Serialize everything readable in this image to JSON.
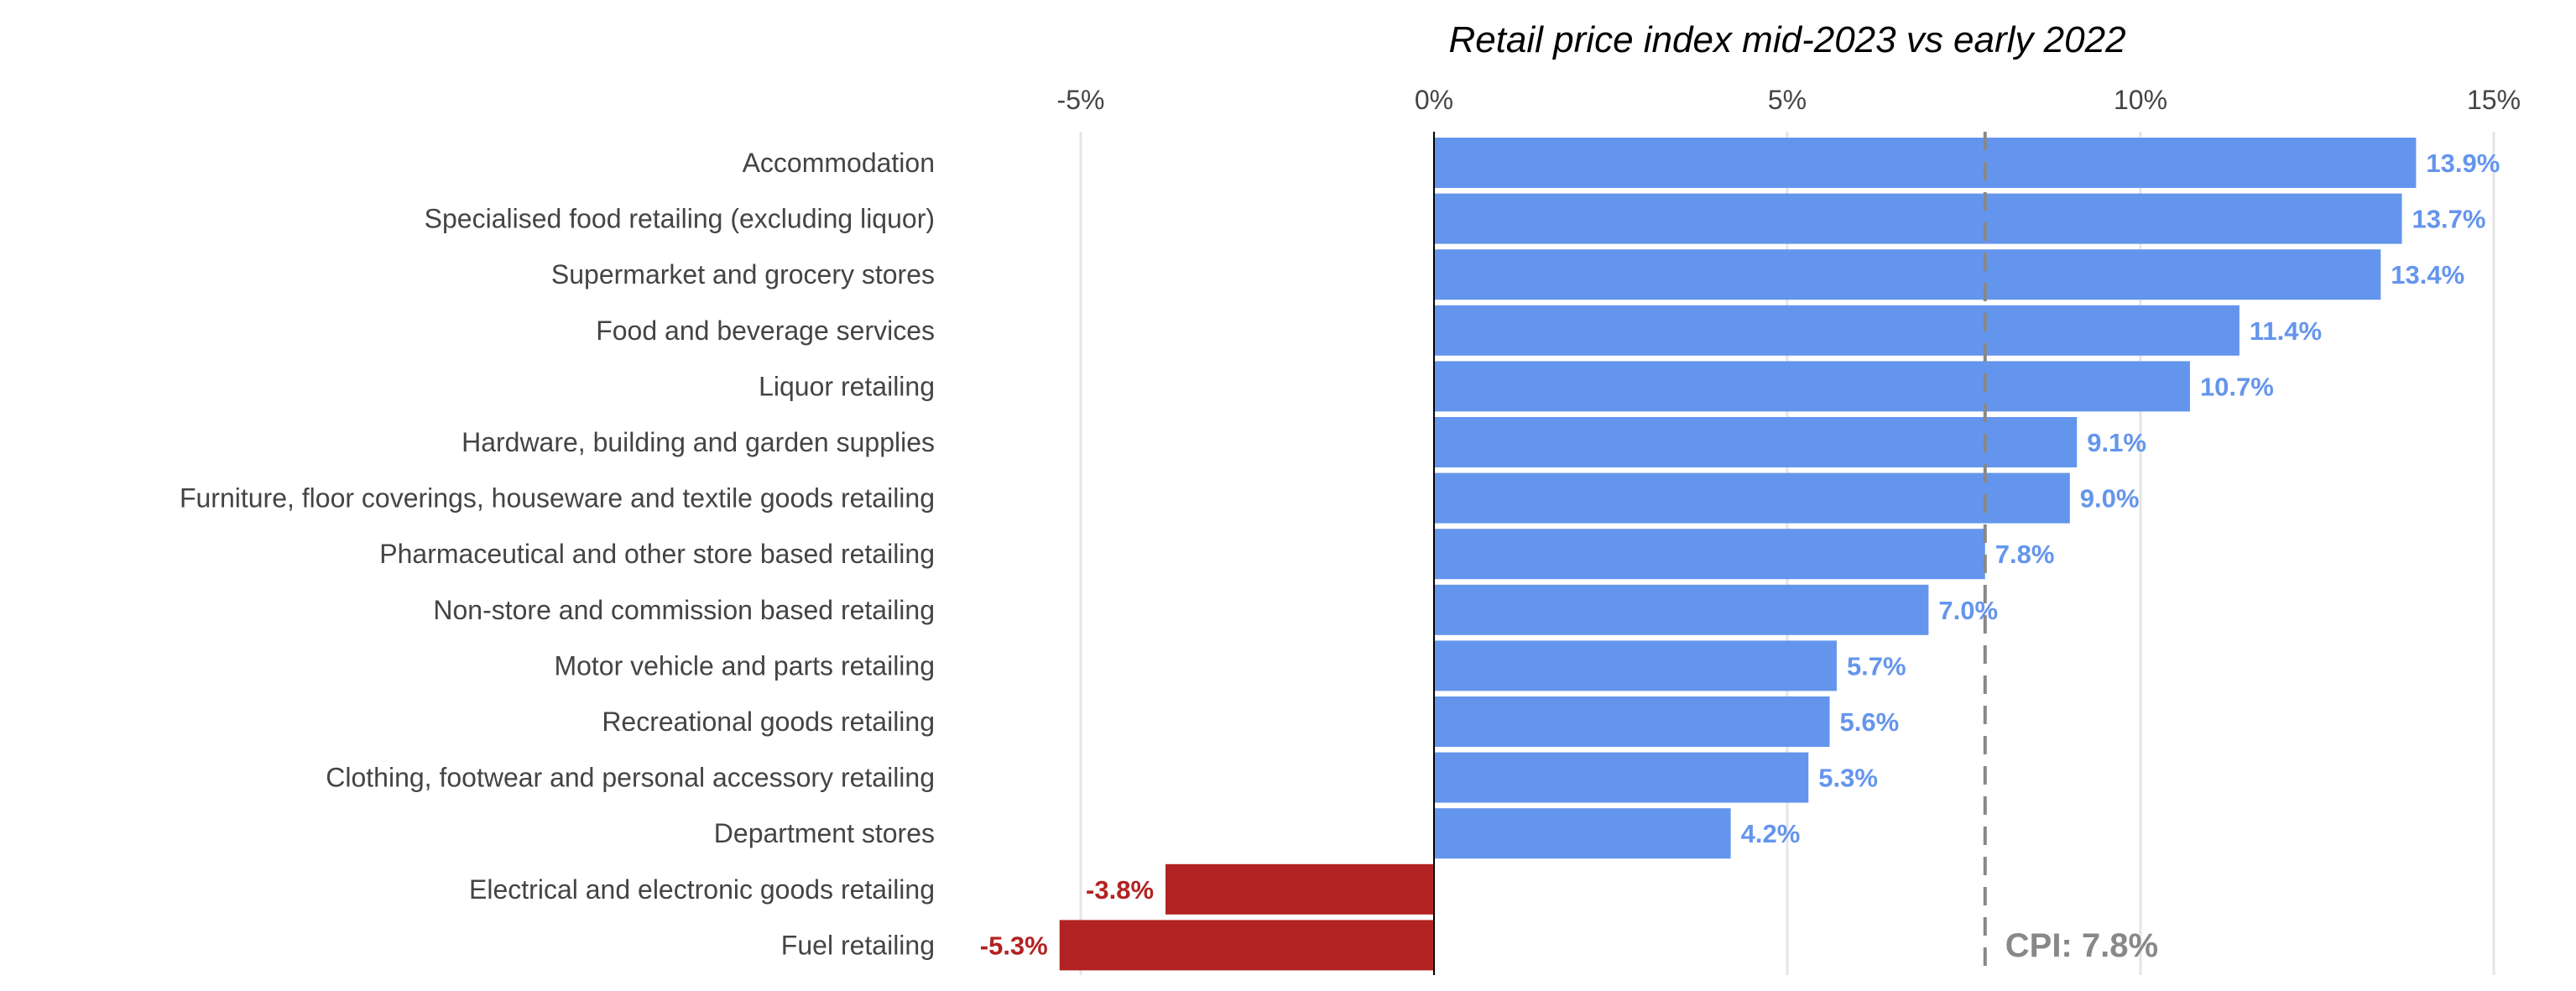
{
  "chart_data": {
    "type": "bar",
    "orientation": "horizontal",
    "title": "Retail price index mid-2023 vs early 2022",
    "xlabel": "",
    "ylabel": "",
    "xlim": [
      -5,
      15
    ],
    "x_ticks": [
      -5,
      0,
      5,
      10,
      15
    ],
    "x_tick_labels": [
      "-5%",
      "0%",
      "5%",
      "10%",
      "15%"
    ],
    "grid": "vertical",
    "categories": [
      "Accommodation",
      "Specialised food retailing (excluding liquor)",
      "Supermarket and grocery stores",
      "Food and beverage services",
      "Liquor retailing",
      "Hardware, building and garden supplies",
      "Furniture, floor coverings, houseware and textile goods retailing",
      "Pharmaceutical and other store based retailing",
      "Non-store and commission based retailing",
      "Motor vehicle and parts retailing",
      "Recreational goods retailing",
      "Clothing, footwear and personal accessory retailing",
      "Department stores",
      "Electrical and electronic goods retailing",
      "Fuel retailing"
    ],
    "values": [
      13.9,
      13.7,
      13.4,
      11.4,
      10.7,
      9.1,
      9.0,
      7.8,
      7.0,
      5.7,
      5.6,
      5.3,
      4.2,
      -3.8,
      -5.3
    ],
    "value_labels": [
      "13.9%",
      "13.7%",
      "13.4%",
      "11.4%",
      "10.7%",
      "9.1%",
      "9.0%",
      "7.8%",
      "7.0%",
      "5.7%",
      "5.6%",
      "5.3%",
      "4.2%",
      "-3.8%",
      "-5.3%"
    ],
    "reference_line": {
      "value": 7.8,
      "label": "CPI: 7.8%"
    },
    "colors": {
      "positive": "#6495ED",
      "negative": "#B22222",
      "reference": "#888888",
      "grid": "#E5E5E5"
    }
  }
}
